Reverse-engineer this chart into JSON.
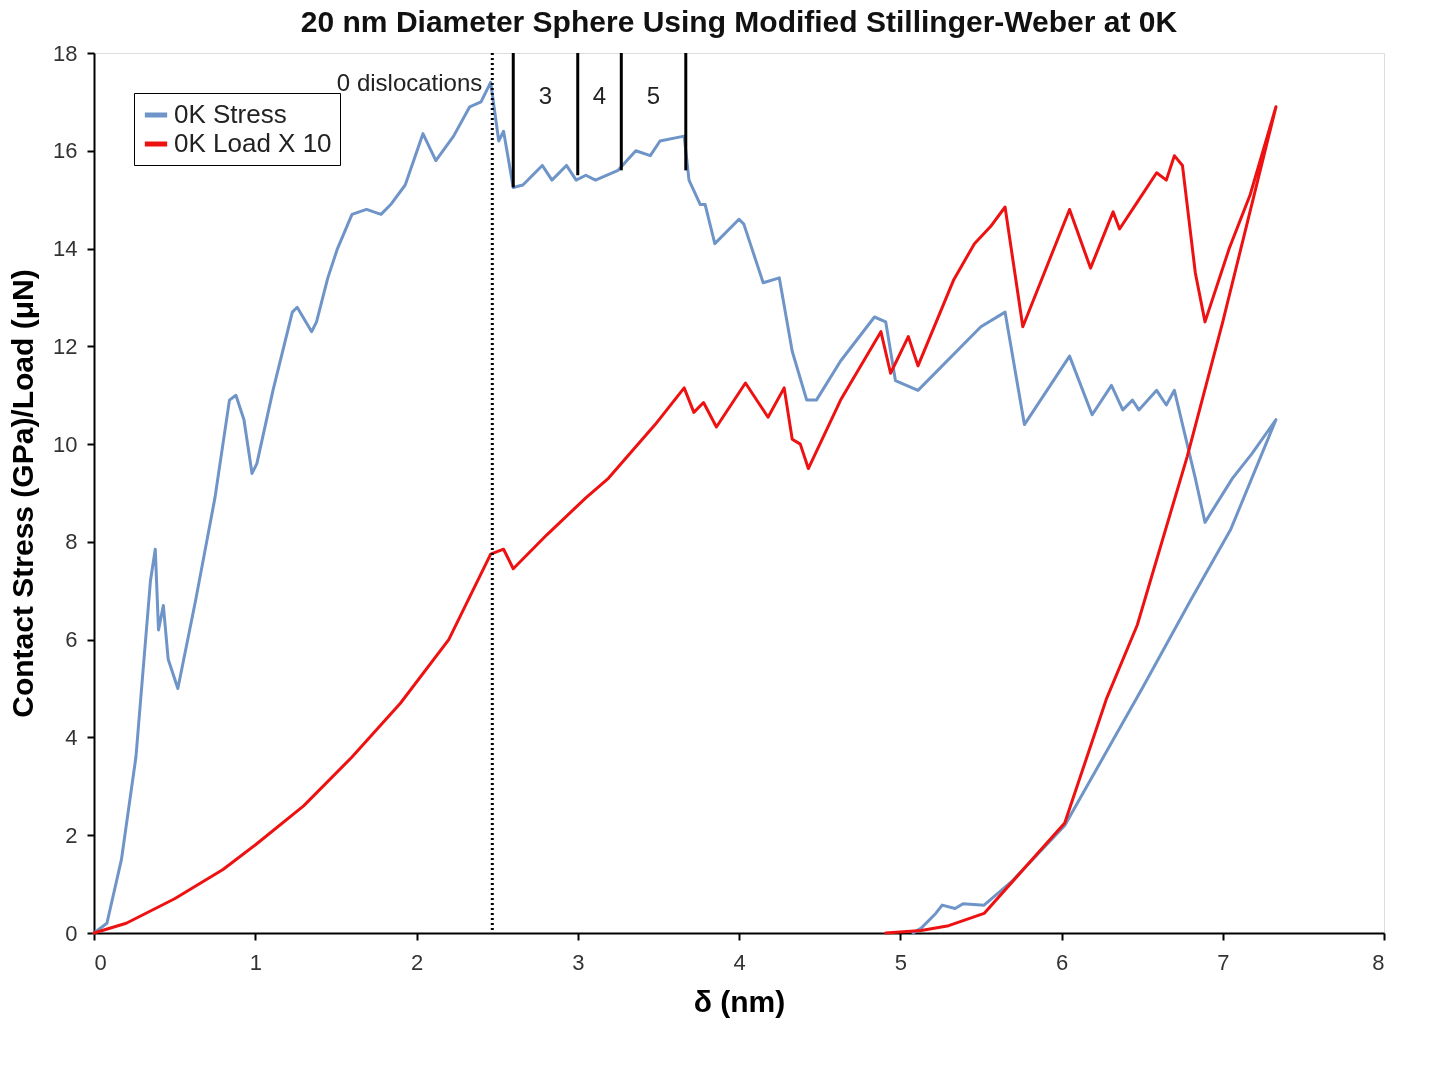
{
  "chart_data": {
    "type": "line",
    "title": "20 nm Diameter Sphere Using Modified Stillinger-Weber at 0K",
    "xlabel": "δ (nm)",
    "ylabel": "Contact Stress (GPa)/Load (μN)",
    "xlim": [
      0,
      8
    ],
    "xticks": [
      0,
      1,
      2,
      3,
      4,
      5,
      6,
      7,
      8
    ],
    "ylim": [
      0,
      18
    ],
    "yticks": [
      0,
      2,
      4,
      6,
      8,
      10,
      12,
      14,
      16,
      18
    ],
    "grid": false,
    "legend": "top left",
    "series": [
      {
        "name": "0K Stress",
        "color": "#6f94c8",
        "x": [
          0,
          0.08,
          0.17,
          0.26,
          0.35,
          0.38,
          0.4,
          0.43,
          0.46,
          0.52,
          0.63,
          0.75,
          0.84,
          0.88,
          0.93,
          0.98,
          1.01,
          1.11,
          1.23,
          1.26,
          1.35,
          1.38,
          1.45,
          1.51,
          1.6,
          1.69,
          1.78,
          1.84,
          1.93,
          2.04,
          2.12,
          2.23,
          2.33,
          2.4,
          2.46,
          2.51,
          2.54,
          2.6,
          2.66,
          2.78,
          2.84,
          2.93,
          2.99,
          3.05,
          3.11,
          3.25,
          3.36,
          3.45,
          3.51,
          3.66,
          3.69,
          3.76,
          3.79,
          3.85,
          4.0,
          4.03,
          4.15,
          4.25,
          4.33,
          4.42,
          4.48,
          4.63,
          4.84,
          4.91,
          4.97,
          5.11,
          5.5,
          5.65,
          5.77,
          6.05,
          6.19,
          6.31,
          6.38,
          6.44,
          6.48,
          6.59,
          6.65,
          6.7,
          6.83,
          6.89,
          7.06,
          7.18,
          7.33,
          7.05,
          6.8,
          6.5,
          6.26,
          6.02,
          5.82,
          5.69,
          5.52,
          5.39,
          5.34,
          5.26,
          5.22,
          5.13,
          5.08
        ],
        "values": [
          0,
          0.2,
          1.5,
          3.6,
          7.2,
          7.85,
          6.2,
          6.7,
          5.6,
          5.0,
          6.8,
          8.9,
          10.9,
          11.0,
          10.5,
          9.4,
          9.6,
          11.1,
          12.7,
          12.8,
          12.3,
          12.5,
          13.4,
          14.0,
          14.7,
          14.8,
          14.7,
          14.9,
          15.3,
          16.35,
          15.8,
          16.3,
          16.9,
          17.0,
          17.4,
          16.2,
          16.4,
          15.25,
          15.3,
          15.7,
          15.4,
          15.7,
          15.4,
          15.5,
          15.4,
          15.6,
          16.0,
          15.9,
          16.2,
          16.3,
          15.4,
          14.9,
          14.9,
          14.1,
          14.6,
          14.5,
          13.3,
          13.4,
          11.9,
          10.9,
          10.9,
          11.7,
          12.6,
          12.5,
          11.3,
          11.1,
          12.4,
          12.7,
          10.4,
          11.8,
          10.6,
          11.2,
          10.7,
          10.9,
          10.7,
          11.1,
          10.8,
          11.1,
          9.3,
          8.4,
          9.3,
          9.8,
          10.5,
          8.26,
          6.8,
          5.0,
          3.6,
          2.2,
          1.5,
          1.05,
          0.57,
          0.6,
          0.5,
          0.57,
          0.4,
          0.1,
          0
        ]
      },
      {
        "name": "0K Load X 10",
        "color": "#ee1111",
        "x": [
          0,
          0.2,
          0.5,
          0.8,
          1.0,
          1.3,
          1.6,
          1.9,
          2.2,
          2.46,
          2.54,
          2.6,
          2.81,
          3.05,
          3.19,
          3.48,
          3.66,
          3.72,
          3.78,
          3.86,
          4.04,
          4.18,
          4.28,
          4.33,
          4.38,
          4.43,
          4.63,
          4.88,
          4.94,
          5.05,
          5.11,
          5.33,
          5.46,
          5.56,
          5.65,
          5.76,
          6.05,
          6.18,
          6.32,
          6.36,
          6.47,
          6.59,
          6.65,
          6.7,
          6.75,
          6.83,
          6.89,
          7.04,
          7.17,
          7.33,
          7.0,
          6.78,
          6.47,
          6.28,
          6.02,
          5.79,
          5.52,
          5.3,
          5.13,
          4.91
        ],
        "values": [
          0,
          0.2,
          0.7,
          1.3,
          1.8,
          2.6,
          3.6,
          4.7,
          6.0,
          7.75,
          7.85,
          7.45,
          8.15,
          8.9,
          9.3,
          10.4,
          11.15,
          10.65,
          10.85,
          10.35,
          11.25,
          10.55,
          11.15,
          10.1,
          10.0,
          9.5,
          10.9,
          12.3,
          11.45,
          12.2,
          11.6,
          13.35,
          14.1,
          14.45,
          14.85,
          12.4,
          14.8,
          13.6,
          14.75,
          14.4,
          14.95,
          15.55,
          15.4,
          15.9,
          15.7,
          13.5,
          12.5,
          14.0,
          15.1,
          16.9,
          12.5,
          9.75,
          6.3,
          4.8,
          2.25,
          1.4,
          0.4,
          0.15,
          0.05,
          0
        ]
      },
      {
        "color": "#000000",
        "x": [
          2.6,
          2.6
        ],
        "values": [
          18,
          15.25
        ]
      },
      {
        "color": "#000000",
        "x": [
          3.0,
          3.0
        ],
        "values": [
          18,
          15.5
        ]
      },
      {
        "color": "#000000",
        "x": [
          3.27,
          3.27
        ],
        "values": [
          18,
          15.6
        ]
      },
      {
        "color": "#000000",
        "x": [
          3.67,
          3.67
        ],
        "values": [
          18,
          15.6
        ]
      }
    ],
    "ref_lines": [
      {
        "axis": "x",
        "value": 2.47,
        "color": "#000000",
        "line_style": "dotted"
      }
    ],
    "annotations": [
      "0 dislocations",
      "3",
      "4",
      "5"
    ]
  }
}
